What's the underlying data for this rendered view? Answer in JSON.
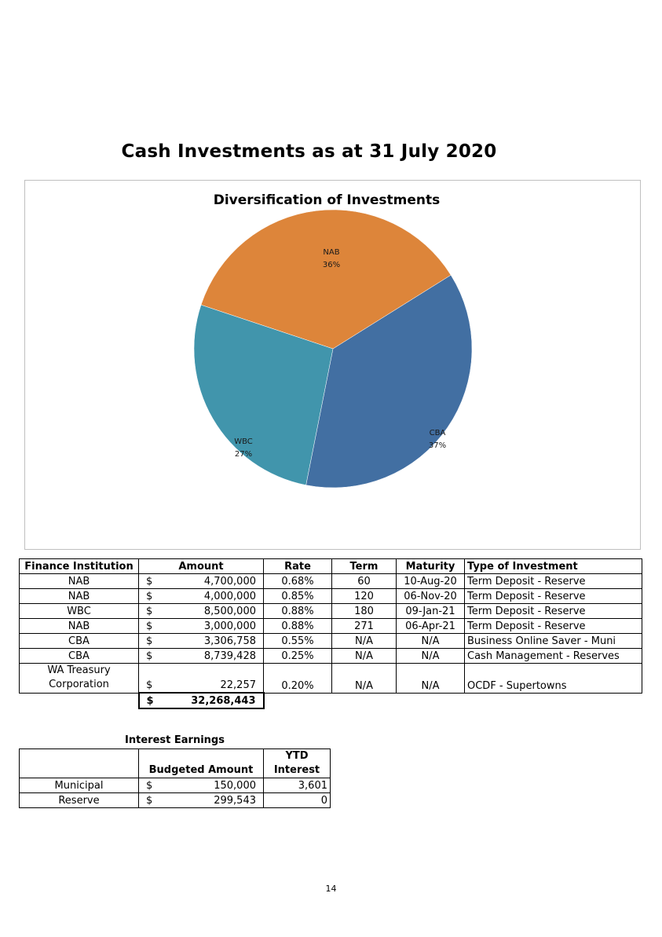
{
  "page": {
    "title": "Cash Investments as at 31 July 2020",
    "page_number": "14"
  },
  "chart_data": {
    "type": "pie",
    "title": "Diversification of Investments",
    "slices": [
      {
        "label": "NAB",
        "pct_label": "36%",
        "value": 36,
        "color": "#dd853a"
      },
      {
        "label": "CBA",
        "pct_label": "37%",
        "value": 37,
        "color": "#426fa2"
      },
      {
        "label": "WBC",
        "pct_label": "27%",
        "value": 27,
        "color": "#4195ac"
      }
    ]
  },
  "investments": {
    "headers": [
      "Finance Institution",
      "Amount",
      "Rate",
      "Term",
      "Maturity",
      "Type of Investment"
    ],
    "rows": [
      {
        "institution": "NAB",
        "currency": "$",
        "amount": "4,700,000",
        "rate": "0.68%",
        "term": "60",
        "maturity": "10-Aug-20",
        "type": "Term Deposit - Reserve"
      },
      {
        "institution": "NAB",
        "currency": "$",
        "amount": "4,000,000",
        "rate": "0.85%",
        "term": "120",
        "maturity": "06-Nov-20",
        "type": "Term Deposit - Reserve"
      },
      {
        "institution": "WBC",
        "currency": "$",
        "amount": "8,500,000",
        "rate": "0.88%",
        "term": "180",
        "maturity": "09-Jan-21",
        "type": "Term Deposit - Reserve"
      },
      {
        "institution": "NAB",
        "currency": "$",
        "amount": "3,000,000",
        "rate": "0.88%",
        "term": "271",
        "maturity": "06-Apr-21",
        "type": "Term Deposit - Reserve"
      },
      {
        "institution": "CBA",
        "currency": "$",
        "amount": "3,306,758",
        "rate": "0.55%",
        "term": "N/A",
        "maturity": "N/A",
        "type": "Business Online Saver - Muni"
      },
      {
        "institution": "CBA",
        "currency": "$",
        "amount": "8,739,428",
        "rate": "0.25%",
        "term": "N/A",
        "maturity": "N/A",
        "type": "Cash Management - Reserves"
      }
    ],
    "last_row": {
      "institution_line1": "WA Treasury",
      "institution_line2": "Corporation",
      "currency": "$",
      "amount": "22,257",
      "rate": "0.20%",
      "term": "N/A",
      "maturity": "N/A",
      "type": "OCDF - Supertowns"
    },
    "total": {
      "currency": "$",
      "amount": "32,268,443"
    }
  },
  "interest_earnings": {
    "title": "Interest Earnings",
    "headers": {
      "budgeted": "Budgeted Amount",
      "ytd_line1": "YTD",
      "ytd_line2": "Interest"
    },
    "rows": [
      {
        "label": "Municipal",
        "currency": "$",
        "budgeted": "150,000",
        "ytd": "3,601"
      },
      {
        "label": "Reserve",
        "currency": "$",
        "budgeted": "299,543",
        "ytd": "0"
      }
    ]
  }
}
